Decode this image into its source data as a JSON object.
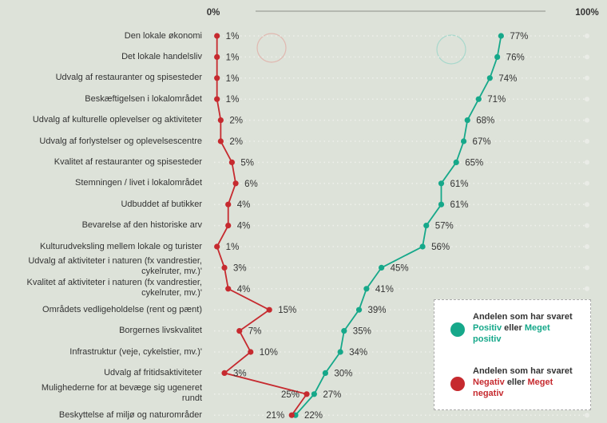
{
  "chart_data": {
    "type": "dotline",
    "categories": [
      "Den lokale økonomi",
      "Det lokale handelsliv",
      "Udvalg af restauranter og spisesteder",
      "Beskæftigelsen i lokalområdet",
      "Udvalg af kulturelle oplevelser og aktiviteter",
      "Udvalg af forlystelser og oplevelsescentre",
      "Kvalitet af restauranter og spisesteder",
      "Stemningen / livet i lokalområdet",
      "Udbuddet af butikker",
      "Bevarelse af den historiske arv",
      "Kulturudveksling mellem lokale og turister",
      "Udvalg af aktiviteter i naturen (fx vandrestier,\ncykelruter, mv.)'",
      "Kvalitet af aktiviteter i naturen (fx vandrestier,\ncykelruter, mv.)'",
      "Områdets vedligeholdelse (rent og pænt)",
      "Borgernes livskvalitet",
      "Infrastruktur (veje, cykelstier, mv.)'",
      "Udvalg af fritidsaktiviteter",
      "Mulighederne for at bevæge sig ugeneret\nrundt",
      "Beskyttelse af miljø og naturområder"
    ],
    "series": [
      {
        "name": [
          "Andelen som har svaret",
          "Positiv",
          "eller",
          "Meget positiv"
        ],
        "color": "#16a88a",
        "values": [
          77,
          76,
          74,
          71,
          68,
          67,
          65,
          61,
          61,
          57,
          56,
          45,
          41,
          39,
          35,
          34,
          30,
          27,
          22
        ],
        "value_labels": [
          "77%",
          "76%",
          "74%",
          "71%",
          "68%",
          "67%",
          "65%",
          "61%",
          "61%",
          "57%",
          "56%",
          "45%",
          "41%",
          "39%",
          "35%",
          "34%",
          "30%",
          "27%",
          "22%"
        ]
      },
      {
        "name": [
          "Andelen som har svaret",
          "Negativ",
          "eller",
          "Meget negativ"
        ],
        "color": "#c62a2f",
        "values": [
          1,
          1,
          1,
          1,
          2,
          2,
          5,
          6,
          4,
          4,
          1,
          3,
          4,
          15,
          7,
          10,
          3,
          25,
          21
        ],
        "value_labels": [
          "1%",
          "1%",
          "1%",
          "1%",
          "2%",
          "2%",
          "5%",
          "6%",
          "4%",
          "4%",
          "1%",
          "3%",
          "4%",
          "15%",
          "7%",
          "10%",
          "3%",
          "25%",
          "21%"
        ]
      }
    ],
    "xlim": [
      0,
      100
    ],
    "xticks": [
      {
        "value": 0,
        "label": "0%"
      },
      {
        "value": 100,
        "label": "100%"
      }
    ]
  }
}
